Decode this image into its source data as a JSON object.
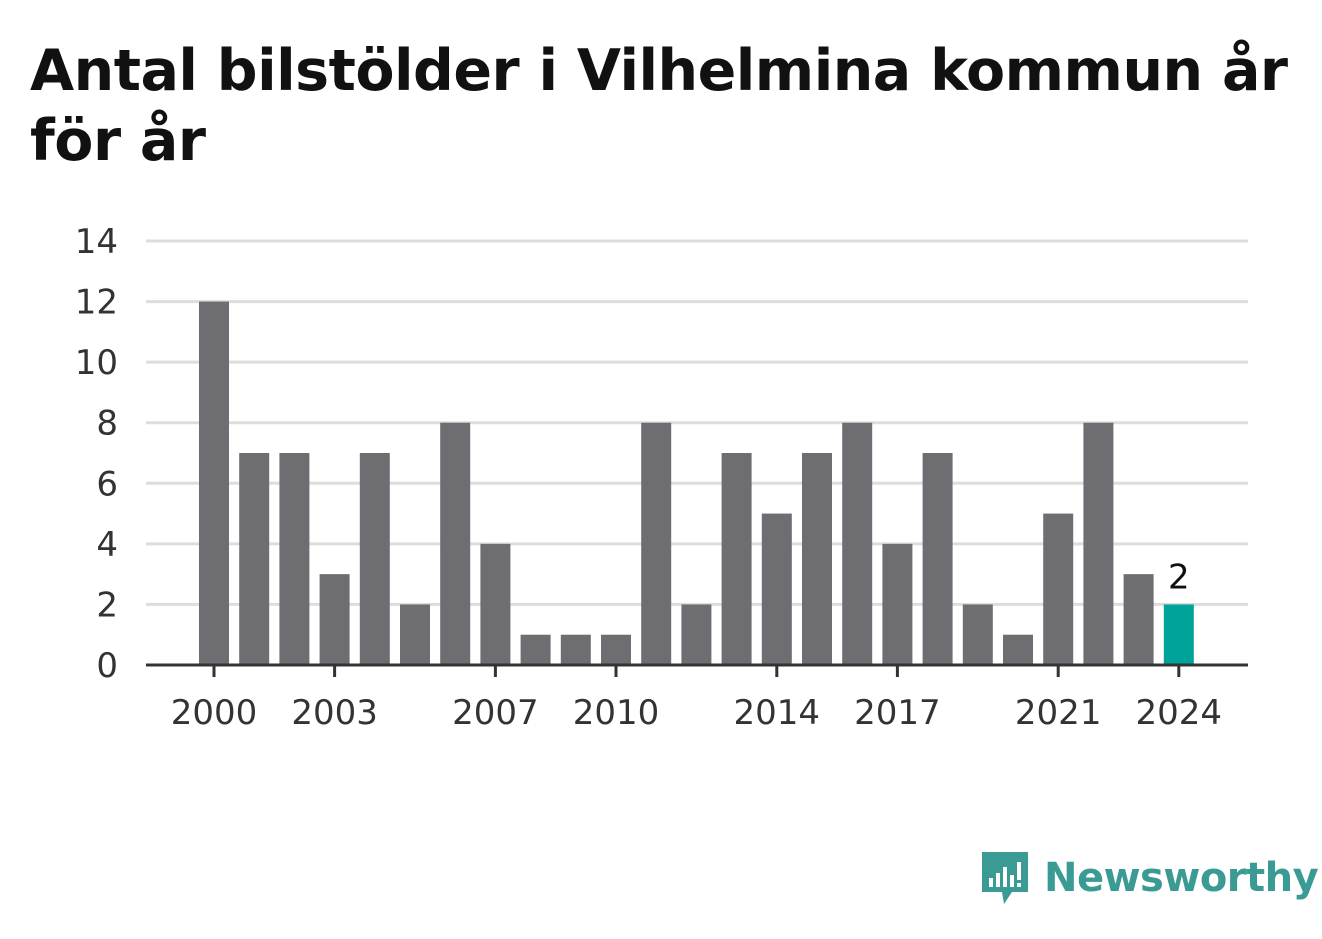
{
  "chart_data": {
    "type": "bar",
    "title": "Antal bilstölder i Vilhelmina kommun år för år",
    "categories": [
      "2000",
      "2001",
      "2002",
      "2003",
      "2004",
      "2005",
      "2006",
      "2007",
      "2008",
      "2009",
      "2010",
      "2011",
      "2012",
      "2013",
      "2014",
      "2015",
      "2016",
      "2017",
      "2018",
      "2019",
      "2020",
      "2021",
      "2022",
      "2023",
      "2024"
    ],
    "values": [
      12,
      7,
      7,
      3,
      7,
      2,
      8,
      4,
      1,
      1,
      1,
      8,
      2,
      7,
      5,
      7,
      8,
      4,
      7,
      2,
      1,
      5,
      8,
      3,
      2
    ],
    "x_tick_labels": [
      "2000",
      "2003",
      "2007",
      "2010",
      "2014",
      "2017",
      "2021",
      "2024"
    ],
    "y_tick_labels": [
      "0",
      "2",
      "4",
      "6",
      "8",
      "10",
      "12",
      "14"
    ],
    "ylim": [
      0,
      14
    ],
    "xlabel": "",
    "ylabel": "",
    "grid": true,
    "highlight": {
      "category": "2024",
      "label": "2"
    },
    "colors": {
      "bar": "#6e6d72",
      "highlight": "#00a39a",
      "grid": "#dddddd",
      "axis": "#333333"
    }
  },
  "logo": {
    "text": "Newsworthy",
    "icon": "chart-speech-bubble-icon"
  }
}
